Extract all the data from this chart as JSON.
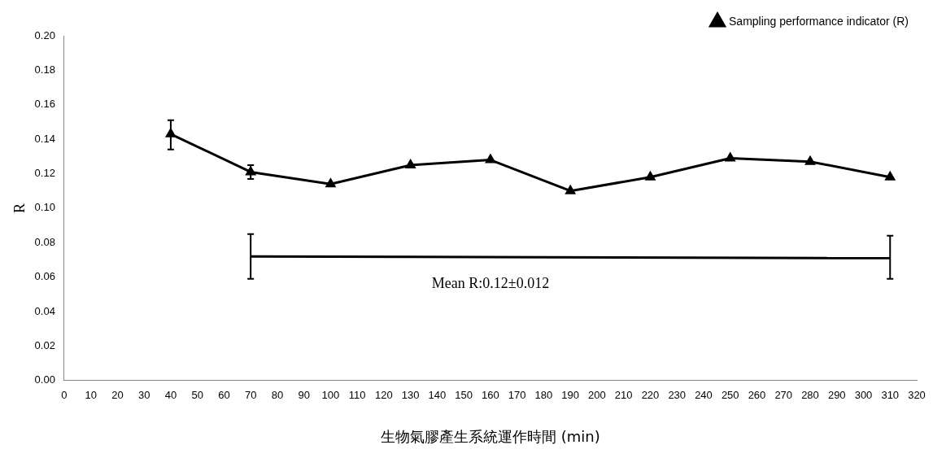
{
  "chart_data": {
    "type": "line",
    "xlabel": "生物氣膠產生系統運作時間 (min)",
    "ylabel": "R",
    "xlim": [
      0,
      320
    ],
    "xticks": [
      0,
      10,
      20,
      30,
      40,
      50,
      60,
      70,
      80,
      90,
      100,
      110,
      120,
      130,
      140,
      150,
      160,
      170,
      180,
      190,
      200,
      210,
      220,
      230,
      240,
      250,
      260,
      270,
      280,
      290,
      300,
      310,
      320
    ],
    "ylim": [
      0,
      0.2
    ],
    "yticks": [
      {
        "value": 0,
        "label": "0.00"
      },
      {
        "value": 0.02,
        "label": "0.02"
      },
      {
        "value": 0.04,
        "label": "0.04"
      },
      {
        "value": 0.06,
        "label": "0.06"
      },
      {
        "value": 0.08,
        "label": "0.08"
      },
      {
        "value": 0.1,
        "label": "0.10"
      },
      {
        "value": 0.12,
        "label": "0.12"
      },
      {
        "value": 0.14,
        "label": "0.14"
      },
      {
        "value": 0.16,
        "label": "0.16"
      },
      {
        "value": 0.18,
        "label": "0.18"
      },
      {
        "value": 0.2,
        "label": "0.20"
      }
    ],
    "grid": false,
    "legend": "top right",
    "marker": "triangle",
    "line_style": "solid",
    "series": [
      {
        "name": "Sampling performance indicator (R)",
        "color": "#000000",
        "x": [
          40,
          70,
          100,
          130,
          160,
          190,
          220,
          250,
          280,
          310
        ],
        "values": [
          0.143,
          0.121,
          0.114,
          0.125,
          0.128,
          0.11,
          0.118,
          0.129,
          0.127,
          0.118
        ],
        "errors": [
          [
            0.134,
            0.151
          ],
          [
            0.117,
            0.125
          ],
          null,
          null,
          null,
          null,
          null,
          null,
          null,
          null
        ]
      },
      {
        "color": "#000000",
        "marker": "none",
        "x": [
          70,
          310
        ],
        "values": [
          0.072,
          0.071
        ],
        "errors": [
          [
            0.059,
            0.085
          ],
          [
            0.059,
            0.084
          ]
        ]
      }
    ],
    "annotations": [
      "Mean R:0.12±0.012"
    ]
  }
}
